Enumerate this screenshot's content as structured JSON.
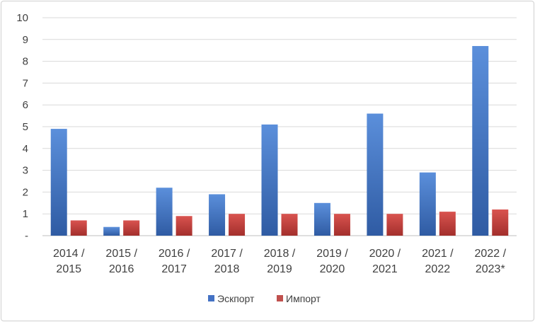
{
  "chart_data": {
    "type": "bar",
    "categories": [
      [
        "2014 /",
        "2015"
      ],
      [
        "2015 /",
        "2016"
      ],
      [
        "2016 /",
        "2017"
      ],
      [
        "2017 /",
        "2018"
      ],
      [
        "2018 /",
        "2019"
      ],
      [
        "2019 /",
        "2020"
      ],
      [
        "2020 /",
        "2021"
      ],
      [
        "2021 /",
        "2022"
      ],
      [
        "2022 /",
        "2023*"
      ]
    ],
    "series": [
      {
        "name": "Эскпорт",
        "color": "#4472C4",
        "values": [
          4.9,
          0.4,
          2.2,
          1.9,
          5.1,
          1.5,
          5.6,
          2.9,
          8.7
        ]
      },
      {
        "name": "Импорт",
        "color": "#C0504D",
        "values": [
          0.7,
          0.7,
          0.9,
          1.0,
          1.0,
          1.0,
          1.0,
          1.1,
          1.2
        ]
      }
    ],
    "y_ticks": [
      "-",
      "1",
      "2",
      "3",
      "4",
      "5",
      "6",
      "7",
      "8",
      "9",
      "10"
    ],
    "ylim": [
      0,
      10
    ],
    "grid": true,
    "legend": "bottom-center"
  }
}
